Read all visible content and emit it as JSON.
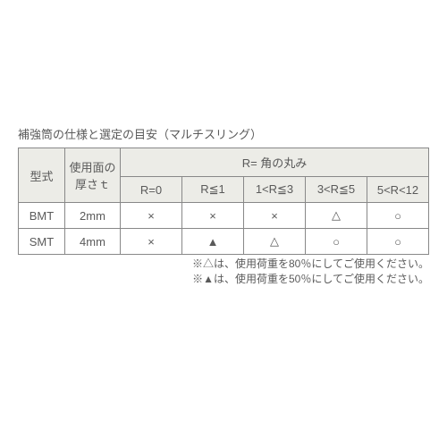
{
  "title": "補強筒の仕様と選定の目安（マルチスリング）",
  "headers": {
    "model": "型式",
    "thickness_line1": "使用面の",
    "thickness_line2": "厚さｔ",
    "r_group": "R= 角の丸み",
    "r0": "R=0",
    "r1": "R≦1",
    "r3": "1<R≦3",
    "r5": "3<R≦5",
    "r12": "5<R<12"
  },
  "rows": [
    {
      "model": "BMT",
      "thickness": "2mm",
      "c": [
        "×",
        "×",
        "×",
        "△",
        "○"
      ]
    },
    {
      "model": "SMT",
      "thickness": "4mm",
      "c": [
        "×",
        "▲",
        "△",
        "○",
        "○"
      ]
    }
  ],
  "notes": {
    "n1": "※△は、使用荷重を80％にしてご使用ください。",
    "n2": "※▲は、使用荷重を50％にしてご使用ください。"
  },
  "colors": {
    "header_bg": "#ecece7",
    "border": "#888888",
    "text": "#5a5a5a",
    "bg": "#ffffff"
  }
}
